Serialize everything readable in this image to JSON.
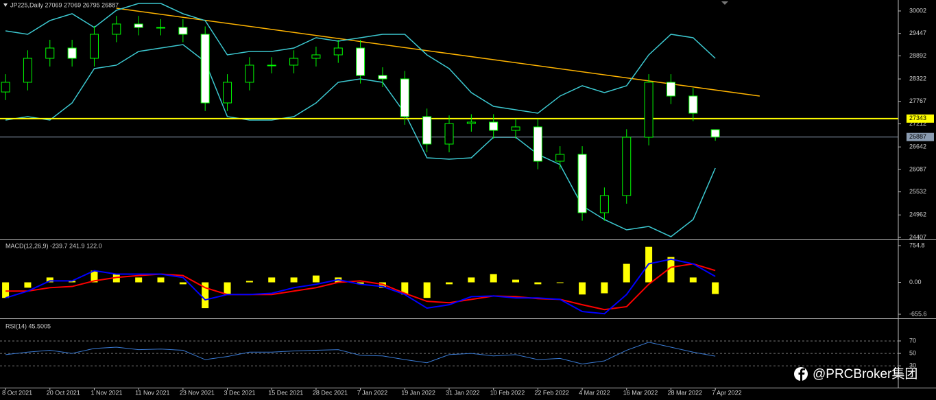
{
  "chart_data": [
    {
      "type": "candlestick",
      "title": "JP225,Daily  27069 27069 26795 26887",
      "x": [
        0,
        4,
        8,
        12,
        16,
        20,
        24,
        28,
        32,
        36,
        40,
        44,
        48,
        52,
        56,
        60,
        64,
        68,
        72,
        76,
        80,
        84,
        88,
        92,
        96,
        100,
        104,
        108,
        112,
        116,
        120,
        124,
        128
      ],
      "open": [
        28000,
        28240,
        28832,
        29086,
        28832,
        29426,
        29680,
        29595,
        29595,
        29426,
        27730,
        28240,
        28663,
        28663,
        28832,
        28917,
        29086,
        28408,
        28324,
        27391,
        26713,
        27221,
        27255,
        27052,
        27137,
        26289,
        26459,
        25017,
        25441,
        26882,
        28240,
        27900,
        27069
      ],
      "high": [
        28440,
        29030,
        29290,
        29290,
        29630,
        29880,
        29880,
        29800,
        29800,
        29620,
        28440,
        28860,
        28860,
        29030,
        29120,
        29290,
        29290,
        28610,
        28520,
        27590,
        27420,
        27450,
        27450,
        27340,
        27340,
        26660,
        26660,
        25640,
        27080,
        28440,
        28440,
        28100,
        27069
      ],
      "low": [
        27800,
        28040,
        28630,
        28630,
        28630,
        29230,
        29400,
        29400,
        29230,
        27530,
        27530,
        28040,
        28460,
        28460,
        28630,
        28720,
        28210,
        28120,
        27190,
        26510,
        26510,
        27020,
        26850,
        26850,
        26090,
        26090,
        24820,
        24820,
        25240,
        26680,
        27700,
        27280,
        26795
      ],
      "close": [
        28240,
        28832,
        29086,
        28832,
        29426,
        29680,
        29595,
        29595,
        29426,
        27730,
        28240,
        28663,
        28663,
        28832,
        28917,
        29086,
        28408,
        28324,
        27391,
        26713,
        27221,
        27255,
        27052,
        27137,
        26289,
        26459,
        25017,
        25441,
        26882,
        28240,
        27900,
        27476,
        26887
      ],
      "up_color": "#000000",
      "down_color": "#ffffff",
      "wick_color": "#00ff00",
      "series": [
        {
          "color": "#3cc8d0",
          "values": [
            29510,
            29426,
            29765,
            29934,
            29595,
            30019,
            30188,
            30188,
            29934,
            29765,
            28917,
            29002,
            29002,
            29086,
            29341,
            29256,
            29341,
            29426,
            29426,
            28917,
            28578,
            27984,
            27645,
            27560,
            27476,
            27900,
            28154,
            27984,
            28154,
            28917,
            29426,
            29341,
            28832
          ]
        },
        {
          "color": "#3cc8d0",
          "values": [
            27306,
            27391,
            27306,
            27730,
            28578,
            28663,
            29002,
            29086,
            29171,
            28747,
            27391,
            27306,
            27306,
            27391,
            27730,
            28239,
            28324,
            28239,
            27476,
            26374,
            26340,
            26374,
            26882,
            26882,
            26459,
            26204,
            25187,
            24848,
            24593,
            24678,
            24424,
            24848,
            26119
          ]
        }
      ],
      "trendline": {
        "x": [
          20,
          136
        ],
        "values": [
          30070,
          27900
        ],
        "color": "#ffb400"
      },
      "hlines": [
        {
          "value": 27343,
          "color": "#ffff00"
        },
        {
          "value": 26887,
          "color": "#8a9bb0"
        }
      ],
      "xlim": [
        -1,
        161
      ],
      "ylim": [
        24373,
        30239
      ],
      "yticks": [
        30002,
        29447,
        28892,
        28322,
        27767,
        27212,
        26642,
        26087,
        25532,
        24962,
        24407
      ]
    },
    {
      "type": "bar",
      "title": "MACD(12,26,9) -239.7 241.9 122.0",
      "x": [
        0,
        4,
        8,
        12,
        16,
        20,
        24,
        28,
        32,
        36,
        40,
        44,
        48,
        52,
        56,
        60,
        64,
        68,
        72,
        76,
        80,
        84,
        88,
        92,
        96,
        100,
        104,
        108,
        112,
        116,
        120,
        124,
        128
      ],
      "series": [
        {
          "style": "bar",
          "color": "#ffff00",
          "values": [
            -320,
            -110,
            100,
            30,
            240,
            170,
            100,
            100,
            -40,
            -530,
            -250,
            30,
            100,
            100,
            140,
            100,
            -40,
            -110,
            -250,
            -320,
            -40,
            100,
            170,
            55,
            -40,
            0,
            -250,
            -225,
            380,
            730,
            520,
            100,
            -239.7
          ]
        },
        {
          "style": "line",
          "color": "#ff0000",
          "values": [
            -180,
            -180,
            -110,
            -85,
            30,
            100,
            140,
            170,
            140,
            -110,
            -250,
            -250,
            -250,
            -180,
            -110,
            0,
            30,
            -40,
            -225,
            -390,
            -420,
            -350,
            -280,
            -295,
            -335,
            -350,
            -460,
            -560,
            -500,
            -40,
            310,
            380,
            241.9
          ]
        },
        {
          "style": "line",
          "color": "#0000ff",
          "values": [
            -320,
            -180,
            30,
            30,
            240,
            170,
            170,
            170,
            100,
            -360,
            -250,
            -250,
            -225,
            -110,
            -40,
            55,
            -40,
            -85,
            -250,
            -530,
            -460,
            -295,
            -280,
            -320,
            -320,
            -350,
            -600,
            -645,
            -250,
            380,
            475,
            380,
            122.0
          ]
        }
      ],
      "xlim": [
        -1,
        161
      ],
      "ylim": [
        -726,
        839
      ],
      "yticks": [
        754.8,
        {
          "value": 0,
          "label": "0.00"
        },
        -655.6
      ]
    },
    {
      "type": "line",
      "title": "RSI(14) 45.5005",
      "x": [
        0,
        4,
        8,
        12,
        16,
        20,
        24,
        28,
        32,
        36,
        40,
        44,
        48,
        52,
        56,
        60,
        64,
        68,
        72,
        76,
        80,
        84,
        88,
        92,
        96,
        100,
        104,
        108,
        112,
        116,
        120,
        124,
        128
      ],
      "series": [
        {
          "color": "#3a7bd5",
          "values": [
            48,
            52,
            55,
            50,
            58,
            60,
            56,
            57,
            55,
            40,
            45,
            52,
            52,
            54,
            55,
            56,
            47,
            46,
            40,
            35,
            48,
            50,
            46,
            48,
            40,
            42,
            33,
            38,
            55,
            68,
            60,
            52,
            45.5005
          ]
        }
      ],
      "grid": true,
      "xlim": [
        -1,
        161
      ],
      "ylim": [
        -5,
        103
      ],
      "yticks": [
        70,
        50,
        30
      ],
      "xticks": [
        {
          "value": 0,
          "label": "8 Oct 2021"
        },
        {
          "value": 8,
          "label": "20 Oct 2021"
        },
        {
          "value": 16,
          "label": "1 Nov 2021"
        },
        {
          "value": 24,
          "label": "11 Nov 2021"
        },
        {
          "value": 32,
          "label": "23 Nov 2021"
        },
        {
          "value": 40,
          "label": "3 Dec 2021"
        },
        {
          "value": 48,
          "label": "15 Dec 2021"
        },
        {
          "value": 56,
          "label": "28 Dec 2021"
        },
        {
          "value": 64,
          "label": "7 Jan 2022"
        },
        {
          "value": 72,
          "label": "19 Jan 2022"
        },
        {
          "value": 80,
          "label": "31 Jan 2022"
        },
        {
          "value": 88,
          "label": "10 Feb 2022"
        },
        {
          "value": 96,
          "label": "22 Feb 2022"
        },
        {
          "value": 104,
          "label": "4 Mar 2022"
        },
        {
          "value": 112,
          "label": "16 Mar 2022"
        },
        {
          "value": 120,
          "label": "28 Mar 2022"
        },
        {
          "value": 128,
          "label": "7 Apr 2022"
        }
      ]
    }
  ],
  "watermark": "@PRCBroker集团"
}
